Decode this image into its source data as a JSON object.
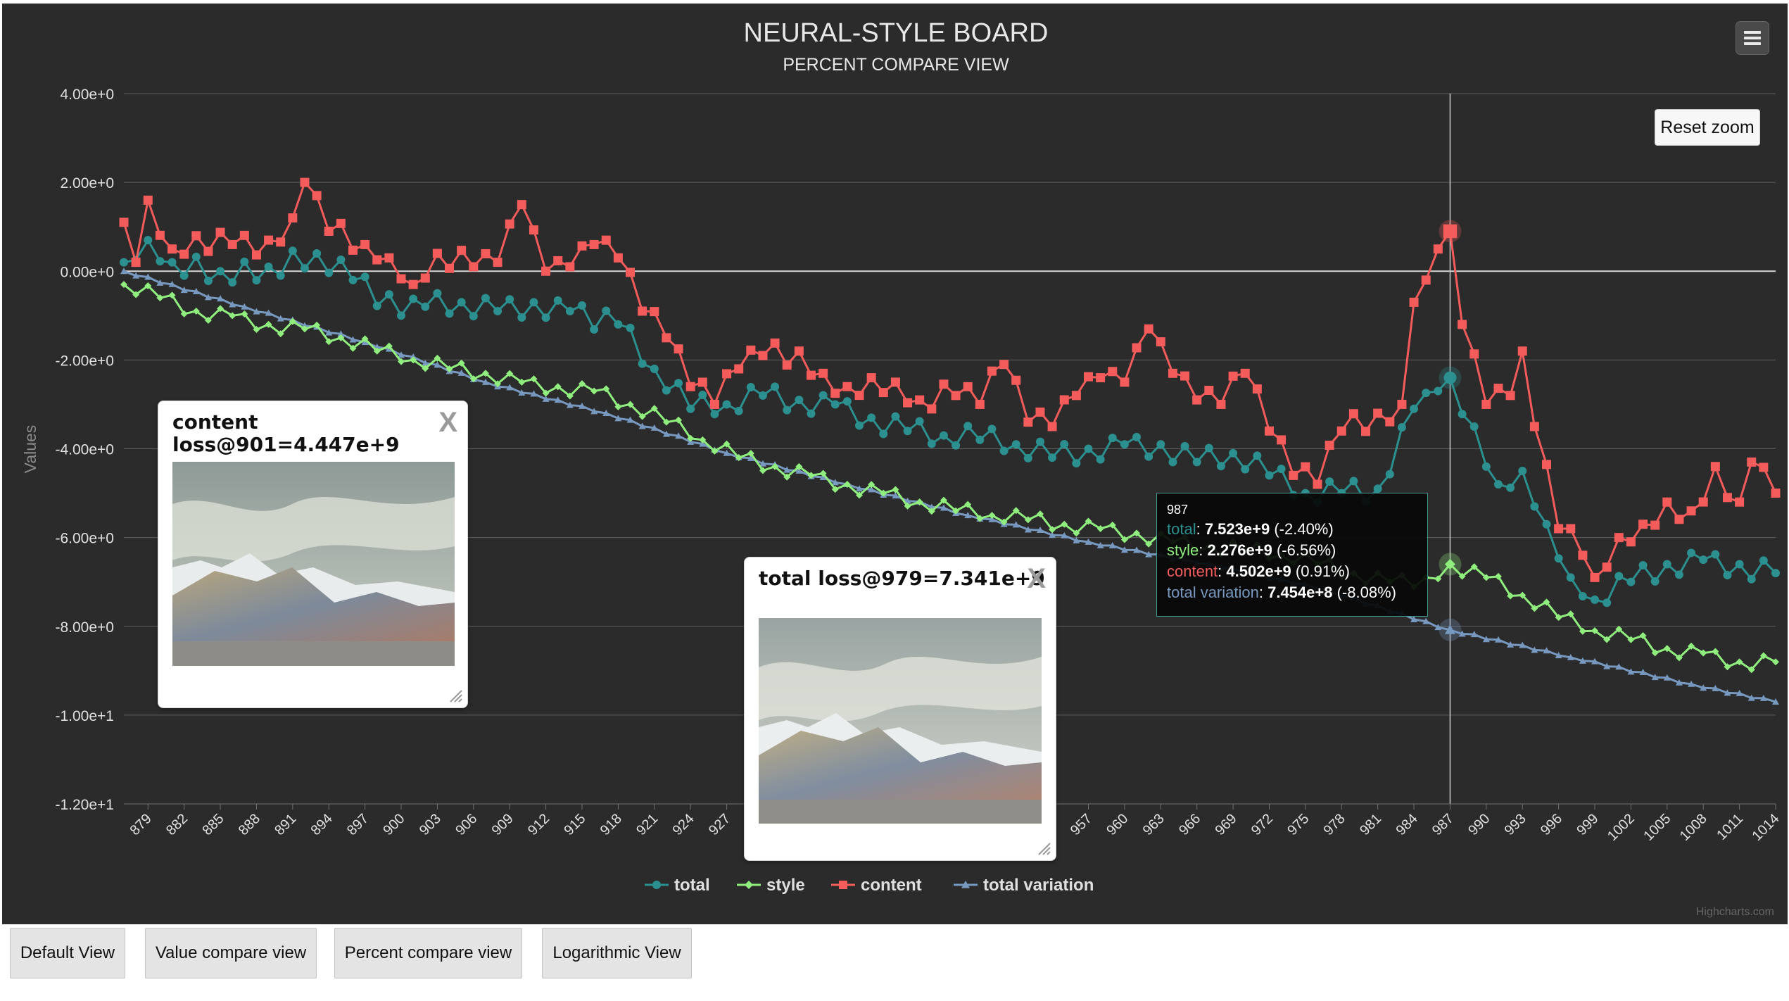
{
  "title": "NEURAL-STYLE BOARD",
  "subtitle": "PERCENT COMPARE VIEW",
  "reset_zoom_label": "Reset zoom",
  "credits": "Highcharts.com",
  "colors": {
    "background": "#2b2b2b",
    "total": "#2b908f",
    "style": "#90ee7e",
    "content": "#f45b5b",
    "total_variation": "#7798bf"
  },
  "tooltip": {
    "x": "987",
    "total_label": "total",
    "total_value": "7.523e+9",
    "total_pct": "(-2.40%)",
    "style_label": "style",
    "style_value": "2.276e+9",
    "style_pct": "(-6.56%)",
    "content_label": "content",
    "content_value": "4.502e+9",
    "content_pct": "(0.91%)",
    "tv_label": "total variation",
    "tv_value": "7.454e+8",
    "tv_pct": "(-8.08%)"
  },
  "popups": [
    {
      "title_line1": "content",
      "title_line2": "loss@901=4.447e+9",
      "close_label": "X"
    },
    {
      "title_line1": "total loss@979=7.341e+9",
      "close_label": "X"
    }
  ],
  "buttons": [
    "Default View",
    "Value compare view",
    "Percent compare view",
    "Logarithmic View"
  ],
  "chart_data": {
    "type": "line",
    "title": "NEURAL-STYLE BOARD",
    "subtitle": "PERCENT COMPARE VIEW",
    "ylabel": "Values",
    "xlabel": "",
    "xlim": [
      877,
      1014
    ],
    "ylim": [
      -12,
      4
    ],
    "y_ticks": [
      4,
      2,
      0,
      -2,
      -4,
      -6,
      -8,
      -10,
      -12
    ],
    "y_tick_labels": [
      "4.00e+0",
      "2.00e+0",
      "0.00e+0",
      "-2.00e+0",
      "-4.00e+0",
      "-6.00e+0",
      "-8.00e+0",
      "-1.00e+1",
      "-1.20e+1"
    ],
    "x_ticks": [
      879,
      882,
      885,
      888,
      891,
      894,
      897,
      900,
      903,
      906,
      909,
      912,
      915,
      918,
      921,
      924,
      927,
      930,
      933,
      936,
      939,
      942,
      945,
      948,
      951,
      954,
      957,
      960,
      963,
      966,
      969,
      972,
      975,
      978,
      981,
      984,
      987,
      990,
      993,
      996,
      999,
      1002,
      1005,
      1008,
      1011,
      1014
    ],
    "legend": "bottom-center",
    "grid": true,
    "crosshair_x": 987,
    "series": [
      {
        "name": "total",
        "anchors": [
          [
            877,
            0.2
          ],
          [
            879,
            0.7
          ],
          [
            881,
            0.2
          ],
          [
            885,
            0.0
          ],
          [
            889,
            0.1
          ],
          [
            893,
            0.4
          ],
          [
            896,
            -0.2
          ],
          [
            900,
            -1.0
          ],
          [
            902,
            -0.8
          ],
          [
            905,
            -0.7
          ],
          [
            908,
            -0.9
          ],
          [
            911,
            -0.7
          ],
          [
            914,
            -0.9
          ],
          [
            918,
            -1.2
          ],
          [
            921,
            -2.2
          ],
          [
            924,
            -3.1
          ],
          [
            927,
            -3.0
          ],
          [
            930,
            -2.8
          ],
          [
            933,
            -2.9
          ],
          [
            936,
            -3.0
          ],
          [
            939,
            -3.3
          ],
          [
            942,
            -3.6
          ],
          [
            945,
            -3.7
          ],
          [
            948,
            -3.8
          ],
          [
            951,
            -3.9
          ],
          [
            954,
            -4.2
          ],
          [
            957,
            -4.0
          ],
          [
            960,
            -3.9
          ],
          [
            963,
            -3.9
          ],
          [
            966,
            -4.3
          ],
          [
            969,
            -4.1
          ],
          [
            972,
            -4.6
          ],
          [
            975,
            -5.0
          ],
          [
            978,
            -5.0
          ],
          [
            981,
            -4.9
          ],
          [
            984,
            -3.1
          ],
          [
            986,
            -2.7
          ],
          [
            987,
            -2.4
          ],
          [
            989,
            -3.5
          ],
          [
            991,
            -4.8
          ],
          [
            993,
            -4.5
          ],
          [
            995,
            -5.7
          ],
          [
            997,
            -6.9
          ],
          [
            999,
            -7.4
          ],
          [
            1002,
            -7.0
          ],
          [
            1005,
            -6.6
          ],
          [
            1008,
            -6.5
          ],
          [
            1011,
            -6.6
          ],
          [
            1014,
            -6.8
          ]
        ],
        "jitter": 0.28
      },
      {
        "name": "style",
        "anchors": [
          [
            877,
            -0.3
          ],
          [
            880,
            -0.6
          ],
          [
            883,
            -0.9
          ],
          [
            886,
            -1.0
          ],
          [
            889,
            -1.2
          ],
          [
            892,
            -1.3
          ],
          [
            895,
            -1.5
          ],
          [
            898,
            -1.8
          ],
          [
            901,
            -2.0
          ],
          [
            904,
            -2.2
          ],
          [
            907,
            -2.3
          ],
          [
            910,
            -2.5
          ],
          [
            913,
            -2.6
          ],
          [
            916,
            -2.7
          ],
          [
            919,
            -3.0
          ],
          [
            922,
            -3.4
          ],
          [
            925,
            -3.8
          ],
          [
            928,
            -4.2
          ],
          [
            931,
            -4.4
          ],
          [
            934,
            -4.6
          ],
          [
            937,
            -4.8
          ],
          [
            940,
            -5.0
          ],
          [
            943,
            -5.2
          ],
          [
            946,
            -5.4
          ],
          [
            949,
            -5.5
          ],
          [
            952,
            -5.6
          ],
          [
            955,
            -5.7
          ],
          [
            958,
            -5.8
          ],
          [
            961,
            -5.9
          ],
          [
            964,
            -6.1
          ],
          [
            967,
            -6.2
          ],
          [
            970,
            -6.3
          ],
          [
            973,
            -6.4
          ],
          [
            976,
            -6.6
          ],
          [
            979,
            -6.8
          ],
          [
            982,
            -7.0
          ],
          [
            985,
            -6.9
          ],
          [
            987,
            -6.6
          ],
          [
            990,
            -6.9
          ],
          [
            993,
            -7.3
          ],
          [
            996,
            -7.8
          ],
          [
            999,
            -8.1
          ],
          [
            1002,
            -8.3
          ],
          [
            1005,
            -8.5
          ],
          [
            1008,
            -8.6
          ],
          [
            1011,
            -8.8
          ],
          [
            1014,
            -8.8
          ]
        ],
        "jitter": 0.18
      },
      {
        "name": "content",
        "anchors": [
          [
            877,
            1.1
          ],
          [
            878,
            0.2
          ],
          [
            879,
            1.6
          ],
          [
            881,
            0.5
          ],
          [
            883,
            0.8
          ],
          [
            886,
            0.6
          ],
          [
            889,
            0.7
          ],
          [
            891,
            1.2
          ],
          [
            892,
            2.0
          ],
          [
            894,
            0.9
          ],
          [
            897,
            0.6
          ],
          [
            899,
            0.3
          ],
          [
            901,
            -0.3
          ],
          [
            903,
            0.4
          ],
          [
            906,
            0.1
          ],
          [
            908,
            0.2
          ],
          [
            910,
            1.5
          ],
          [
            912,
            0.0
          ],
          [
            914,
            0.1
          ],
          [
            916,
            0.6
          ],
          [
            918,
            0.3
          ],
          [
            920,
            -0.9
          ],
          [
            922,
            -1.5
          ],
          [
            924,
            -2.6
          ],
          [
            926,
            -3.0
          ],
          [
            928,
            -2.2
          ],
          [
            930,
            -1.9
          ],
          [
            933,
            -1.8
          ],
          [
            935,
            -2.3
          ],
          [
            937,
            -2.6
          ],
          [
            939,
            -2.4
          ],
          [
            941,
            -2.5
          ],
          [
            943,
            -2.9
          ],
          [
            946,
            -2.8
          ],
          [
            948,
            -3.0
          ],
          [
            950,
            -2.1
          ],
          [
            952,
            -3.4
          ],
          [
            954,
            -3.5
          ],
          [
            956,
            -2.8
          ],
          [
            958,
            -2.4
          ],
          [
            960,
            -2.5
          ],
          [
            962,
            -1.3
          ],
          [
            964,
            -2.3
          ],
          [
            966,
            -2.9
          ],
          [
            968,
            -3.0
          ],
          [
            970,
            -2.3
          ],
          [
            972,
            -3.6
          ],
          [
            974,
            -4.6
          ],
          [
            976,
            -4.8
          ],
          [
            978,
            -3.6
          ],
          [
            981,
            -3.2
          ],
          [
            983,
            -3.0
          ],
          [
            984,
            -0.7
          ],
          [
            985,
            -0.2
          ],
          [
            986,
            0.5
          ],
          [
            987,
            0.9
          ],
          [
            988,
            -1.2
          ],
          [
            990,
            -3.0
          ],
          [
            992,
            -2.8
          ],
          [
            993,
            -1.8
          ],
          [
            994,
            -3.5
          ],
          [
            996,
            -5.8
          ],
          [
            998,
            -6.4
          ],
          [
            999,
            -6.9
          ],
          [
            1001,
            -6.0
          ],
          [
            1003,
            -5.7
          ],
          [
            1005,
            -5.2
          ],
          [
            1007,
            -5.4
          ],
          [
            1009,
            -4.4
          ],
          [
            1011,
            -5.2
          ],
          [
            1012,
            -4.3
          ],
          [
            1014,
            -5.0
          ]
        ],
        "jitter": 0.3
      },
      {
        "name": "total variation",
        "anchors": [
          [
            877,
            0.0
          ],
          [
            887,
            -0.8
          ],
          [
            897,
            -1.6
          ],
          [
            907,
            -2.5
          ],
          [
            917,
            -3.2
          ],
          [
            927,
            -4.1
          ],
          [
            937,
            -4.8
          ],
          [
            947,
            -5.5
          ],
          [
            957,
            -6.1
          ],
          [
            967,
            -6.6
          ],
          [
            977,
            -7.2
          ],
          [
            987,
            -8.08
          ],
          [
            997,
            -8.7
          ],
          [
            1007,
            -9.3
          ],
          [
            1014,
            -9.7
          ]
        ],
        "jitter": 0.03
      }
    ]
  }
}
